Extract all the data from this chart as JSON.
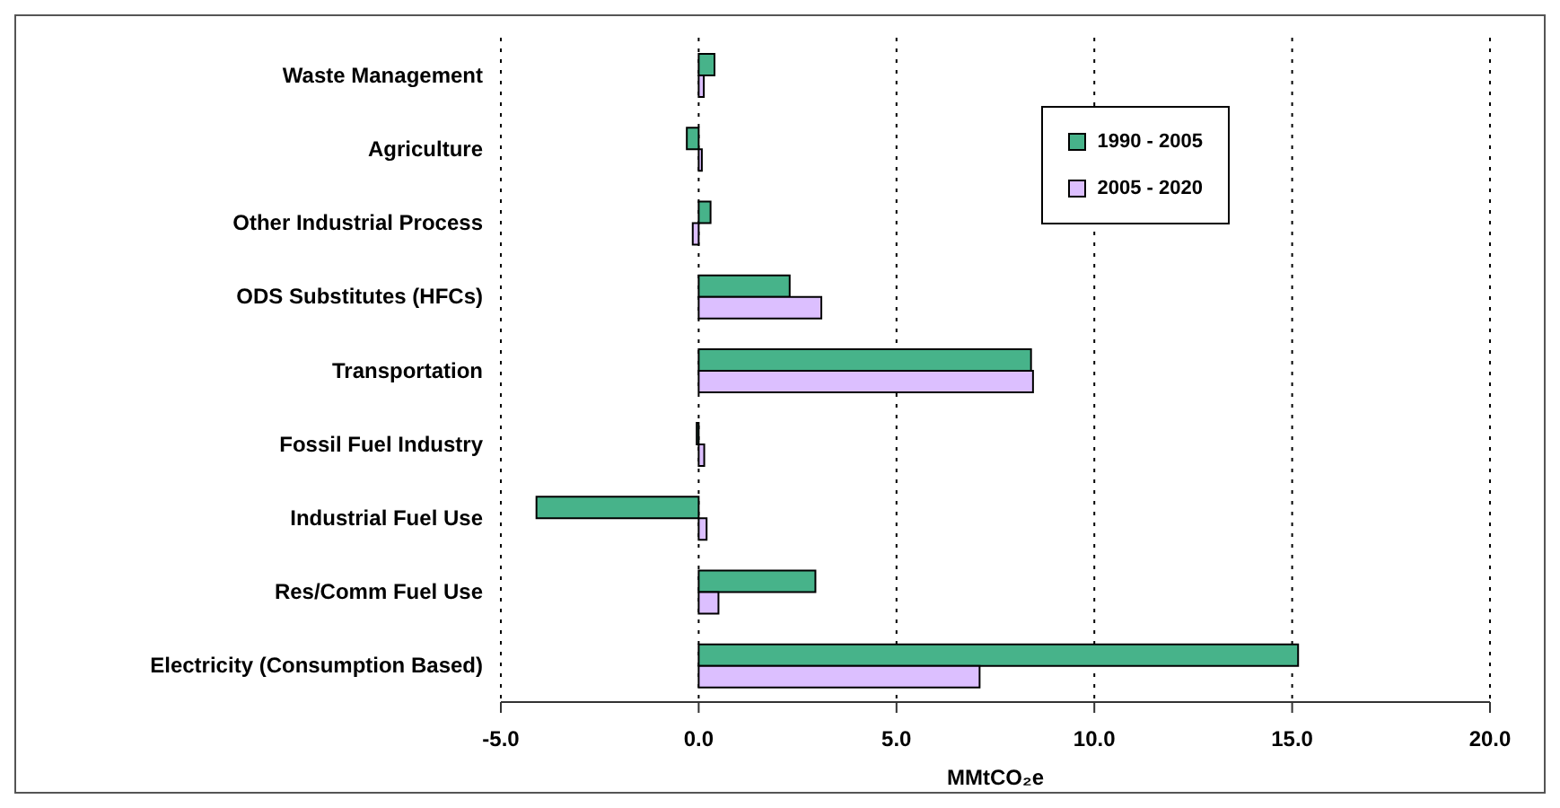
{
  "chart_data": {
    "type": "bar",
    "orientation": "horizontal",
    "xlabel": "MMtCO₂e",
    "categories": [
      "Waste Management",
      "Agriculture",
      "Other Industrial Process ",
      "ODS Substitutes (HFCs)",
      "Transportation",
      "Fossil Fuel Industry",
      "Industrial Fuel Use",
      "Res/Comm Fuel Use",
      "Electricity (Consumption Based)"
    ],
    "series": [
      {
        "name": "1990 - 2005",
        "color": "#47b38a",
        "values": [
          0.4,
          -0.3,
          0.3,
          2.3,
          8.4,
          -0.05,
          -4.1,
          2.95,
          15.15
        ]
      },
      {
        "name": "2005 - 2020",
        "color": "#dcbfff",
        "values": [
          0.13,
          0.08,
          -0.15,
          3.1,
          8.45,
          0.14,
          0.2,
          0.5,
          7.1
        ]
      }
    ],
    "xlim": [
      -5,
      20
    ],
    "xticks": [
      {
        "value": -5,
        "label": "-5.0"
      },
      {
        "value": 0,
        "label": "0.0"
      },
      {
        "value": 5,
        "label": "5.0"
      },
      {
        "value": 10,
        "label": "10.0"
      },
      {
        "value": 15,
        "label": "15.0"
      },
      {
        "value": 20,
        "label": "20.0"
      }
    ],
    "grid": "x",
    "legend": "top right"
  }
}
